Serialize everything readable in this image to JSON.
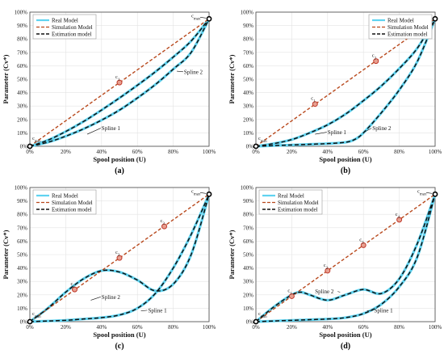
{
  "colors": {
    "real": "#5fd3f0",
    "simulation": "#b8481c",
    "estimation": "#111111",
    "control_point_edge": "#c0392b",
    "control_point_fill": "#e8a090",
    "grid": "#e3e3e3"
  },
  "chart_data": [
    {
      "type": "line",
      "panel_label": "(a)",
      "xlabel": "Spool position (U)",
      "ylabel": "Parameter (Cv*)",
      "xlim": [
        0,
        100
      ],
      "ylim": [
        0,
        100
      ],
      "xticks": [
        "0%",
        "20%",
        "40%",
        "60%",
        "80%",
        "100%"
      ],
      "yticks": [
        "0%",
        "10%",
        "20%",
        "30%",
        "40%",
        "50%",
        "60%",
        "70%",
        "80%",
        "90%",
        "100%"
      ],
      "grid": true,
      "legend": {
        "position": "top-left",
        "entries": [
          "Real Model",
          "Simulation Model",
          "Estimation model"
        ]
      },
      "series": [
        {
          "name": "Real Model",
          "style": "solid-cyan",
          "curves": [
            {
              "x": [
                0,
                10,
                20,
                30,
                40,
                50,
                60,
                70,
                80,
                90,
                100
              ],
              "y": [
                0,
                3,
                7.5,
                13,
                19.5,
                27,
                36,
                46,
                57.5,
                70,
                95
              ]
            },
            {
              "x": [
                0,
                10,
                20,
                30,
                40,
                50,
                60,
                70,
                80,
                90,
                100
              ],
              "y": [
                0,
                4.5,
                11,
                18.5,
                27,
                36,
                45.5,
                55.5,
                66.5,
                78.5,
                95
              ]
            }
          ]
        },
        {
          "name": "Simulation Model",
          "style": "dashed-red",
          "curves": [
            {
              "x": [
                0,
                100
              ],
              "y": [
                0,
                95
              ]
            }
          ]
        },
        {
          "name": "Estimation model",
          "style": "dashed-black",
          "curves": [
            {
              "x": [
                0,
                10,
                20,
                30,
                40,
                50,
                60,
                70,
                80,
                90,
                100
              ],
              "y": [
                0,
                3,
                7.5,
                13,
                19.5,
                27,
                36,
                46,
                57.5,
                70,
                95
              ]
            },
            {
              "x": [
                0,
                10,
                20,
                30,
                40,
                50,
                60,
                70,
                80,
                90,
                100
              ],
              "y": [
                0,
                4.5,
                11,
                18.5,
                27,
                36,
                45.5,
                55.5,
                66.5,
                78.5,
                95
              ]
            }
          ]
        }
      ],
      "control_points": [
        {
          "label": "c1",
          "x": 50,
          "y": 47.5
        }
      ],
      "endpoints": [
        {
          "label": "cmin",
          "x": 0,
          "y": 0
        },
        {
          "label": "cmax",
          "x": 100,
          "y": 95
        }
      ],
      "annotations": [
        {
          "text": "Spline 1",
          "x": 40,
          "y": 12,
          "arrow_to": [
            32,
            9
          ]
        },
        {
          "text": "Spline 2",
          "x": 86,
          "y": 54,
          "arrow_to": [
            82,
            56
          ]
        }
      ]
    },
    {
      "type": "line",
      "panel_label": "(b)",
      "xlabel": "Spool position (U)",
      "ylabel": "Parameter (Cv*)",
      "xlim": [
        0,
        100
      ],
      "ylim": [
        0,
        100
      ],
      "xticks": [
        "0%",
        "20%",
        "40%",
        "60%",
        "80%",
        "100%"
      ],
      "yticks": [
        "0%",
        "10%",
        "20%",
        "30%",
        "40%",
        "50%",
        "60%",
        "70%",
        "80%",
        "90%",
        "100%"
      ],
      "grid": true,
      "legend": {
        "position": "top-right",
        "entries": [
          "Real Model",
          "Simulation Model",
          "Estimation model"
        ]
      },
      "series": [
        {
          "name": "Real Model",
          "style": "solid-cyan",
          "curves": [
            {
              "x": [
                0,
                10,
                20,
                30,
                40,
                50,
                60,
                70,
                80,
                90,
                100
              ],
              "y": [
                0,
                2,
                5,
                10,
                16,
                24,
                34,
                45,
                58,
                73,
                95
              ]
            },
            {
              "x": [
                0,
                10,
                20,
                30,
                40,
                50,
                55,
                60,
                70,
                80,
                90,
                100
              ],
              "y": [
                0,
                0.5,
                1,
                1.5,
                2,
                3,
                5,
                10,
                25,
                42,
                63,
                95
              ]
            }
          ]
        },
        {
          "name": "Simulation Model",
          "style": "dashed-red",
          "curves": [
            {
              "x": [
                0,
                100
              ],
              "y": [
                0,
                95
              ]
            }
          ]
        },
        {
          "name": "Estimation model",
          "style": "dashed-black",
          "curves": [
            {
              "x": [
                0,
                10,
                20,
                30,
                40,
                50,
                60,
                70,
                80,
                90,
                100
              ],
              "y": [
                0,
                2,
                5,
                10,
                16,
                24,
                34,
                45,
                58,
                73,
                95
              ]
            },
            {
              "x": [
                0,
                10,
                20,
                30,
                40,
                50,
                55,
                60,
                70,
                80,
                90,
                100
              ],
              "y": [
                0,
                0.5,
                1,
                1.5,
                2,
                3,
                5,
                10,
                25,
                42,
                63,
                95
              ]
            }
          ]
        }
      ],
      "control_points": [
        {
          "label": "c1",
          "x": 33,
          "y": 31.5
        },
        {
          "label": "c2",
          "x": 67,
          "y": 63.5
        }
      ],
      "endpoints": [
        {
          "label": "cmin",
          "x": 0,
          "y": 0
        },
        {
          "label": "cmax",
          "x": 100,
          "y": 95
        }
      ],
      "annotations": [
        {
          "text": "Spline 1",
          "x": 40,
          "y": 9,
          "arrow_to": [
            33,
            9
          ]
        },
        {
          "text": "Spline 2",
          "x": 65,
          "y": 12,
          "arrow_to": [
            61,
            11
          ]
        }
      ]
    },
    {
      "type": "line",
      "panel_label": "(c)",
      "xlabel": "Spool position (U)",
      "ylabel": "Parameter (Cv*)",
      "xlim": [
        0,
        100
      ],
      "ylim": [
        0,
        100
      ],
      "xticks": [
        "0%",
        "20%",
        "40%",
        "60%",
        "80%",
        "100%"
      ],
      "yticks": [
        "0%",
        "10%",
        "20%",
        "30%",
        "40%",
        "50%",
        "60%",
        "70%",
        "80%",
        "90%",
        "100%"
      ],
      "grid": true,
      "legend": {
        "position": "top-left",
        "entries": [
          "Real Model",
          "Simulation Model",
          "Estimation model"
        ]
      },
      "series": [
        {
          "name": "Real Model",
          "style": "solid-cyan",
          "curves": [
            {
              "x": [
                0,
                10,
                20,
                30,
                40,
                50,
                60,
                70,
                80,
                90,
                100
              ],
              "y": [
                0,
                10,
                22,
                32,
                38,
                37,
                31,
                23,
                28,
                50,
                95
              ]
            },
            {
              "x": [
                0,
                10,
                20,
                30,
                40,
                50,
                60,
                70,
                80,
                90,
                100
              ],
              "y": [
                0,
                0.5,
                1,
                2,
                3,
                5,
                10,
                21,
                40,
                65,
                95
              ]
            }
          ]
        },
        {
          "name": "Simulation Model",
          "style": "dashed-red",
          "curves": [
            {
              "x": [
                0,
                100
              ],
              "y": [
                0,
                95
              ]
            }
          ]
        },
        {
          "name": "Estimation model",
          "style": "dashed-black",
          "curves": [
            {
              "x": [
                0,
                10,
                20,
                30,
                40,
                50,
                60,
                70,
                80,
                90,
                100
              ],
              "y": [
                0,
                10,
                22,
                32,
                38,
                37,
                31,
                23,
                28,
                50,
                95
              ]
            },
            {
              "x": [
                0,
                10,
                20,
                30,
                40,
                50,
                60,
                70,
                80,
                90,
                100
              ],
              "y": [
                0,
                0.5,
                1,
                2,
                3,
                5,
                10,
                21,
                40,
                65,
                95
              ]
            }
          ]
        }
      ],
      "control_points": [
        {
          "label": "c1",
          "x": 25,
          "y": 24
        },
        {
          "label": "c2",
          "x": 50,
          "y": 47.5
        },
        {
          "label": "c3",
          "x": 75,
          "y": 71
        }
      ],
      "endpoints": [
        {
          "label": "cmin",
          "x": 0,
          "y": 0
        },
        {
          "label": "cmax",
          "x": 100,
          "y": 95
        }
      ],
      "annotations": [
        {
          "text": "Spline 2",
          "x": 40,
          "y": 17,
          "arrow_to": [
            34,
            16
          ]
        },
        {
          "text": "Spline 1",
          "x": 66,
          "y": 7,
          "arrow_to": [
            62,
            8
          ]
        }
      ]
    },
    {
      "type": "line",
      "panel_label": "(d)",
      "xlabel": "Spool position (U)",
      "ylabel": "Parameter (Cv*)",
      "xlim": [
        0,
        100
      ],
      "ylim": [
        0,
        100
      ],
      "xticks": [
        "0%",
        "20%",
        "40%",
        "60%",
        "80%",
        "100%"
      ],
      "yticks": [
        "0%",
        "10%",
        "20%",
        "30%",
        "40%",
        "50%",
        "60%",
        "70%",
        "80%",
        "90%",
        "100%"
      ],
      "grid": true,
      "legend": {
        "position": "top-left",
        "entries": [
          "Real Model",
          "Simulation Model",
          "Estimation model"
        ]
      },
      "series": [
        {
          "name": "Real Model",
          "style": "solid-cyan",
          "curves": [
            {
              "x": [
                0,
                10,
                20,
                25,
                30,
                40,
                50,
                60,
                70,
                80,
                90,
                100
              ],
              "y": [
                0,
                11,
                20,
                22,
                20,
                16,
                20,
                24,
                21,
                32,
                58,
                95
              ]
            },
            {
              "x": [
                0,
                10,
                20,
                30,
                40,
                50,
                60,
                70,
                80,
                90,
                100
              ],
              "y": [
                0,
                0.5,
                1,
                1.5,
                2,
                3,
                6,
                13,
                26,
                48,
                95
              ]
            }
          ]
        },
        {
          "name": "Simulation Model",
          "style": "dashed-red",
          "curves": [
            {
              "x": [
                0,
                100
              ],
              "y": [
                0,
                95
              ]
            }
          ]
        },
        {
          "name": "Estimation model",
          "style": "dashed-black",
          "curves": [
            {
              "x": [
                0,
                10,
                20,
                25,
                30,
                40,
                50,
                60,
                70,
                80,
                90,
                100
              ],
              "y": [
                0,
                11,
                20,
                22,
                20,
                16,
                20,
                24,
                21,
                32,
                58,
                95
              ]
            },
            {
              "x": [
                0,
                10,
                20,
                30,
                40,
                50,
                60,
                70,
                80,
                90,
                100
              ],
              "y": [
                0,
                0.5,
                1,
                1.5,
                2,
                3,
                6,
                13,
                26,
                48,
                95
              ]
            }
          ]
        }
      ],
      "control_points": [
        {
          "label": "c1",
          "x": 20,
          "y": 19
        },
        {
          "label": "c2",
          "x": 40,
          "y": 38
        },
        {
          "label": "c3",
          "x": 60,
          "y": 57
        },
        {
          "label": "c4",
          "x": 80,
          "y": 76
        }
      ],
      "endpoints": [
        {
          "label": "cmin",
          "x": 0,
          "y": 0
        },
        {
          "label": "cmax",
          "x": 100,
          "y": 95
        }
      ],
      "annotations": [
        {
          "text": "Spline 2",
          "x": 33,
          "y": 21,
          "arrow_to": [
            47,
            22
          ]
        },
        {
          "text": "Spline 1",
          "x": 66,
          "y": 7,
          "arrow_to": [
            62,
            8
          ]
        }
      ]
    }
  ]
}
